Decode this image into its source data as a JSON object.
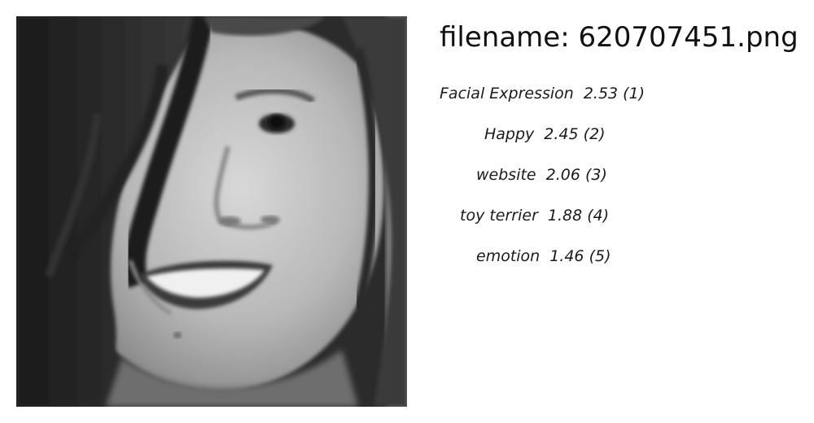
{
  "image": {
    "alt_subject": "grayscale portrait"
  },
  "filename_label": "filename: 620707451.png",
  "labels": [
    {
      "name": "Facial Expression",
      "score": "2.53",
      "rank": "(1)"
    },
    {
      "name": "Happy",
      "score": "2.45",
      "rank": "(2)"
    },
    {
      "name": "website",
      "score": "2.06",
      "rank": "(3)"
    },
    {
      "name": "toy terrier",
      "score": "1.88",
      "rank": "(4)"
    },
    {
      "name": "emotion",
      "score": "1.46",
      "rank": "(5)"
    }
  ]
}
